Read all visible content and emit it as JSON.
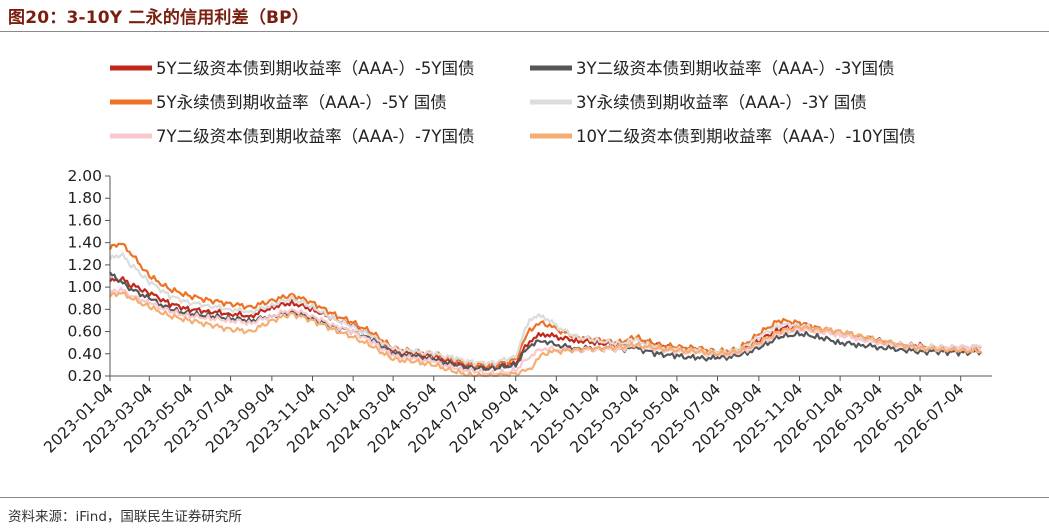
{
  "title": "图20：3-10Y 二永的信用利差（BP）",
  "source": "资料来源：iFind，国联民生证券研究所",
  "chart_data": {
    "type": "line",
    "title": "图20：3-10Y 二永的信用利差（BP）",
    "xlabel": "",
    "ylabel": "",
    "ylim": [
      0.2,
      2.0
    ],
    "y_ticks": [
      "0.20",
      "0.40",
      "0.60",
      "0.80",
      "1.00",
      "1.20",
      "1.40",
      "1.60",
      "1.80",
      "2.00"
    ],
    "x_ticks": [
      "2023-01-04",
      "2023-03-04",
      "2023-05-04",
      "2023-07-04",
      "2023-09-04",
      "2023-11-04",
      "2024-01-04",
      "2024-03-04",
      "2024-05-04",
      "2024-07-04",
      "2024-09-04",
      "2024-11-04",
      "2025-01-04",
      "2025-03-04",
      "2025-05-04",
      "2025-07-04",
      "2025-09-04",
      "2025-11-04",
      "2026-01-04",
      "2026-03-04",
      "2026-05-04",
      "2026-07-04"
    ],
    "grid": false,
    "legend_position": "top",
    "series": [
      {
        "name": "5Y二级资本债到期收益率（AAA-）-5Y国债",
        "color": "#c0281b",
        "width": 3.2,
        "x": [
          "2023-01-04",
          "2023-01-20",
          "2023-02-05",
          "2023-03-04",
          "2023-04-04",
          "2023-05-04",
          "2023-06-04",
          "2023-07-04",
          "2023-08-04",
          "2023-09-04",
          "2023-10-04",
          "2023-11-04",
          "2023-12-04",
          "2024-01-04",
          "2024-02-04",
          "2024-03-04",
          "2024-04-04",
          "2024-05-04",
          "2024-06-04",
          "2024-07-04",
          "2024-08-04",
          "2024-09-04",
          "2024-09-25",
          "2024-10-15",
          "2024-11-04",
          "2024-12-04",
          "2025-01-04",
          "2025-02-04",
          "2025-03-04",
          "2025-04-04",
          "2025-05-04",
          "2025-06-04",
          "2025-07-04",
          "2025-08-04",
          "2025-09-04",
          "2025-10-04",
          "2025-11-04",
          "2025-12-04",
          "2026-01-04",
          "2026-02-04",
          "2026-03-04",
          "2026-04-04",
          "2026-05-04",
          "2026-06-04",
          "2026-07-04",
          "2026-08-04"
        ],
        "values": [
          1.05,
          1.08,
          1.02,
          0.95,
          0.85,
          0.8,
          0.78,
          0.76,
          0.74,
          0.82,
          0.86,
          0.8,
          0.72,
          0.65,
          0.55,
          0.42,
          0.4,
          0.38,
          0.32,
          0.28,
          0.28,
          0.32,
          0.52,
          0.58,
          0.55,
          0.52,
          0.5,
          0.48,
          0.52,
          0.48,
          0.45,
          0.44,
          0.4,
          0.42,
          0.52,
          0.62,
          0.66,
          0.62,
          0.58,
          0.55,
          0.52,
          0.48,
          0.47,
          0.45,
          0.45,
          0.46
        ]
      },
      {
        "name": "3Y二级资本债到期收益率（AAA-）-3Y国债",
        "color": "#55565a",
        "width": 3.2,
        "x": [
          "2023-01-04",
          "2023-01-20",
          "2023-02-05",
          "2023-03-04",
          "2023-04-04",
          "2023-05-04",
          "2023-06-04",
          "2023-07-04",
          "2023-08-04",
          "2023-09-04",
          "2023-10-04",
          "2023-11-04",
          "2023-12-04",
          "2024-01-04",
          "2024-02-04",
          "2024-03-04",
          "2024-04-04",
          "2024-05-04",
          "2024-06-04",
          "2024-07-04",
          "2024-08-04",
          "2024-09-04",
          "2024-09-25",
          "2024-10-15",
          "2024-11-04",
          "2024-12-04",
          "2025-01-04",
          "2025-02-04",
          "2025-03-04",
          "2025-04-04",
          "2025-05-04",
          "2025-06-04",
          "2025-07-04",
          "2025-08-04",
          "2025-09-04",
          "2025-10-04",
          "2025-11-04",
          "2025-12-04",
          "2026-01-04",
          "2026-02-04",
          "2026-03-04",
          "2026-04-04",
          "2026-05-04",
          "2026-06-04",
          "2026-07-04",
          "2026-08-04"
        ],
        "values": [
          1.12,
          1.05,
          0.98,
          0.9,
          0.8,
          0.76,
          0.74,
          0.72,
          0.7,
          0.74,
          0.78,
          0.72,
          0.65,
          0.6,
          0.52,
          0.4,
          0.38,
          0.35,
          0.3,
          0.27,
          0.27,
          0.3,
          0.48,
          0.52,
          0.48,
          0.45,
          0.45,
          0.44,
          0.45,
          0.4,
          0.38,
          0.36,
          0.36,
          0.38,
          0.45,
          0.55,
          0.58,
          0.55,
          0.5,
          0.48,
          0.46,
          0.44,
          0.42,
          0.42,
          0.41,
          0.42
        ]
      },
      {
        "name": "5Y永续债到期收益率（AAA-）-5Y 国债",
        "color": "#ee7124",
        "width": 3.2,
        "x": [
          "2023-01-04",
          "2023-01-20",
          "2023-02-05",
          "2023-03-04",
          "2023-04-04",
          "2023-05-04",
          "2023-06-04",
          "2023-07-04",
          "2023-08-04",
          "2023-09-04",
          "2023-10-04",
          "2023-11-04",
          "2023-12-04",
          "2024-01-04",
          "2024-02-04",
          "2024-03-04",
          "2024-04-04",
          "2024-05-04",
          "2024-06-04",
          "2024-07-04",
          "2024-08-04",
          "2024-09-04",
          "2024-09-25",
          "2024-10-15",
          "2024-11-04",
          "2024-12-04",
          "2025-01-04",
          "2025-02-04",
          "2025-03-04",
          "2025-04-04",
          "2025-05-04",
          "2025-06-04",
          "2025-07-04",
          "2025-08-04",
          "2025-09-04",
          "2025-10-04",
          "2025-11-04",
          "2025-12-04",
          "2026-01-04",
          "2026-02-04",
          "2026-03-04",
          "2026-04-04",
          "2026-05-04",
          "2026-06-04",
          "2026-07-04",
          "2026-08-04"
        ],
        "values": [
          1.35,
          1.4,
          1.3,
          1.1,
          0.98,
          0.92,
          0.88,
          0.85,
          0.82,
          0.88,
          0.93,
          0.86,
          0.76,
          0.68,
          0.58,
          0.45,
          0.42,
          0.4,
          0.34,
          0.3,
          0.3,
          0.35,
          0.62,
          0.68,
          0.62,
          0.55,
          0.53,
          0.5,
          0.55,
          0.48,
          0.46,
          0.45,
          0.42,
          0.44,
          0.58,
          0.7,
          0.68,
          0.63,
          0.6,
          0.56,
          0.52,
          0.48,
          0.46,
          0.44,
          0.43,
          0.42
        ]
      },
      {
        "name": "3Y永续债到期收益率（AAA-）-3Y 国债",
        "color": "#dcdcdc",
        "width": 3.2,
        "x": [
          "2023-01-04",
          "2023-01-20",
          "2023-02-05",
          "2023-03-04",
          "2023-04-04",
          "2023-05-04",
          "2023-06-04",
          "2023-07-04",
          "2023-08-04",
          "2023-09-04",
          "2023-10-04",
          "2023-11-04",
          "2023-12-04",
          "2024-01-04",
          "2024-02-04",
          "2024-03-04",
          "2024-04-04",
          "2024-05-04",
          "2024-06-04",
          "2024-07-04",
          "2024-08-04",
          "2024-09-04",
          "2024-09-25",
          "2024-10-15",
          "2024-11-04",
          "2024-12-04",
          "2025-01-04",
          "2025-02-04",
          "2025-03-04",
          "2025-04-04",
          "2025-05-04",
          "2025-06-04",
          "2025-07-04",
          "2025-08-04",
          "2025-09-04",
          "2025-10-04",
          "2025-11-04",
          "2025-12-04",
          "2026-01-04",
          "2026-02-04",
          "2026-03-04",
          "2026-04-04",
          "2026-05-04",
          "2026-06-04",
          "2026-07-04",
          "2026-08-04"
        ],
        "values": [
          1.25,
          1.3,
          1.2,
          1.05,
          0.92,
          0.86,
          0.83,
          0.8,
          0.78,
          0.84,
          0.9,
          0.82,
          0.72,
          0.64,
          0.55,
          0.44,
          0.42,
          0.4,
          0.36,
          0.32,
          0.32,
          0.38,
          0.72,
          0.74,
          0.65,
          0.55,
          0.52,
          0.49,
          0.52,
          0.46,
          0.44,
          0.43,
          0.41,
          0.43,
          0.55,
          0.66,
          0.66,
          0.62,
          0.58,
          0.54,
          0.51,
          0.48,
          0.46,
          0.46,
          0.46,
          0.47
        ]
      },
      {
        "name": "7Y二级资本债到期收益率（AAA-）-7Y国债",
        "color": "#f8c8cc",
        "width": 3.2,
        "x": [
          "2023-01-04",
          "2023-01-20",
          "2023-02-05",
          "2023-03-04",
          "2023-04-04",
          "2023-05-04",
          "2023-06-04",
          "2023-07-04",
          "2023-08-04",
          "2023-09-04",
          "2023-10-04",
          "2023-11-04",
          "2023-12-04",
          "2024-01-04",
          "2024-02-04",
          "2024-03-04",
          "2024-04-04",
          "2024-05-04",
          "2024-06-04",
          "2024-07-04",
          "2024-08-04",
          "2024-09-04",
          "2024-09-25",
          "2024-10-15",
          "2024-11-04",
          "2024-12-04",
          "2025-01-04",
          "2025-02-04",
          "2025-03-04",
          "2025-04-04",
          "2025-05-04",
          "2025-06-04",
          "2025-07-04",
          "2025-08-04",
          "2025-09-04",
          "2025-10-04",
          "2025-11-04",
          "2025-12-04",
          "2026-01-04",
          "2026-02-04",
          "2026-03-04",
          "2026-04-04",
          "2026-05-04",
          "2026-06-04",
          "2026-07-04",
          "2026-08-04"
        ],
        "values": [
          0.95,
          0.98,
          0.92,
          0.86,
          0.78,
          0.74,
          0.72,
          0.7,
          0.68,
          0.74,
          0.8,
          0.74,
          0.66,
          0.6,
          0.5,
          0.38,
          0.36,
          0.33,
          0.27,
          0.24,
          0.22,
          0.25,
          0.38,
          0.45,
          0.44,
          0.43,
          0.44,
          0.44,
          0.47,
          0.44,
          0.42,
          0.41,
          0.39,
          0.4,
          0.48,
          0.58,
          0.62,
          0.6,
          0.57,
          0.53,
          0.5,
          0.47,
          0.45,
          0.45,
          0.45,
          0.46
        ]
      },
      {
        "name": "10Y二级资本债到期收益率（AAA-）-10Y国债",
        "color": "#f5ae72",
        "width": 3.2,
        "x": [
          "2023-01-04",
          "2023-01-20",
          "2023-02-05",
          "2023-03-04",
          "2023-04-04",
          "2023-05-04",
          "2023-06-04",
          "2023-07-04",
          "2023-08-04",
          "2023-09-04",
          "2023-10-04",
          "2023-11-04",
          "2023-12-04",
          "2024-01-04",
          "2024-02-04",
          "2024-03-04",
          "2024-04-04",
          "2024-05-04",
          "2024-06-04",
          "2024-07-04",
          "2024-08-04",
          "2024-09-04",
          "2024-09-25",
          "2024-10-15",
          "2024-11-04",
          "2024-12-04",
          "2025-01-04",
          "2025-02-04",
          "2025-03-04",
          "2025-04-04",
          "2025-05-04",
          "2025-06-04",
          "2025-07-04",
          "2025-08-04",
          "2025-09-04",
          "2025-10-04",
          "2025-11-04",
          "2025-12-04",
          "2026-01-04",
          "2026-02-04",
          "2026-03-04",
          "2026-04-04",
          "2026-05-04",
          "2026-06-04",
          "2026-07-04",
          "2026-08-04"
        ],
        "values": [
          0.92,
          0.95,
          0.9,
          0.82,
          0.74,
          0.7,
          0.66,
          0.62,
          0.6,
          0.7,
          0.76,
          0.7,
          0.62,
          0.55,
          0.46,
          0.35,
          0.33,
          0.3,
          0.24,
          0.2,
          0.2,
          0.22,
          0.26,
          0.4,
          0.42,
          0.44,
          0.45,
          0.46,
          0.48,
          0.45,
          0.43,
          0.42,
          0.4,
          0.42,
          0.5,
          0.6,
          0.64,
          0.62,
          0.6,
          0.56,
          0.52,
          0.48,
          0.45,
          0.44,
          0.43,
          0.42
        ]
      }
    ]
  }
}
